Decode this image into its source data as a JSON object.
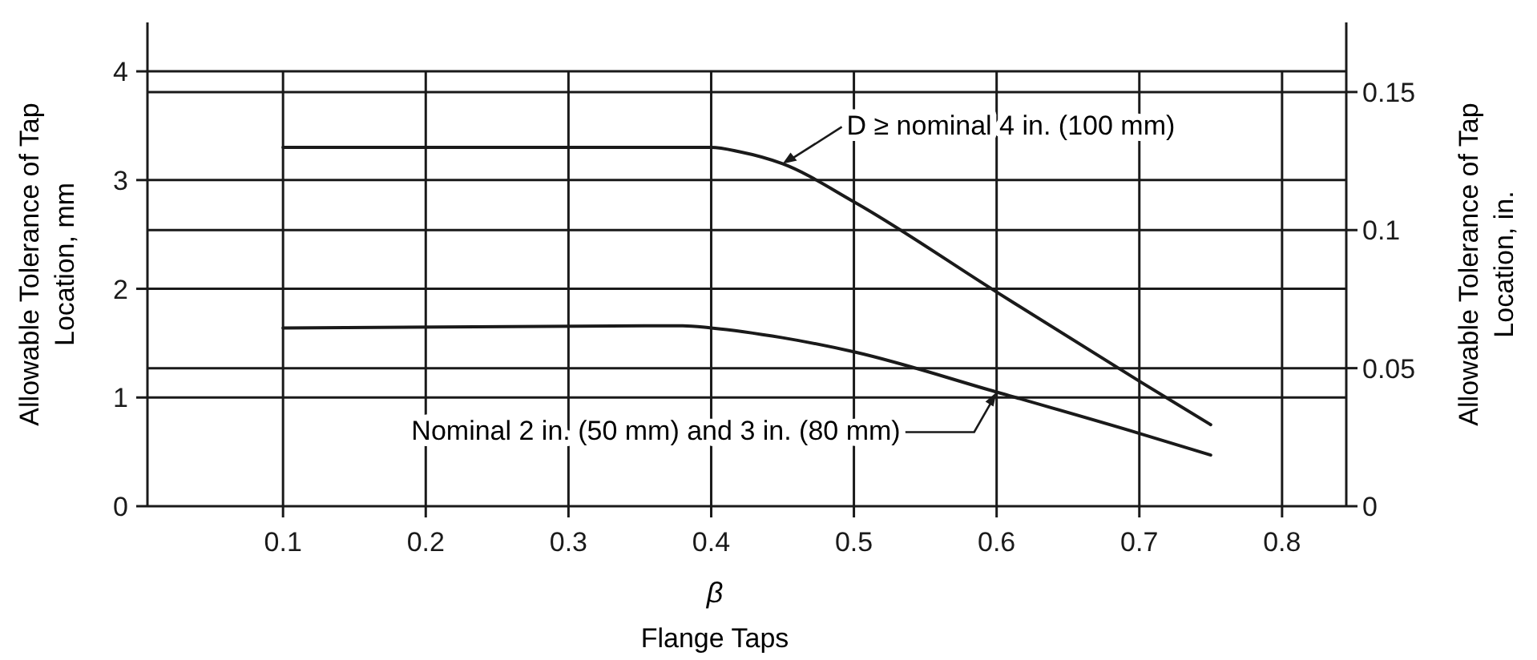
{
  "chart_data": {
    "type": "line",
    "xlabel": "β",
    "ylabel": "Allowable Tolerance of Tap Location, mm",
    "y2label": "Allowable Tolerance of Tap Location, in.",
    "xlim": [
      0.005,
      0.845
    ],
    "xticks": [
      0.1,
      0.2,
      0.3,
      0.4,
      0.5,
      0.6,
      0.7,
      0.8
    ],
    "ylim": [
      0,
      4.45
    ],
    "yticks": [
      0,
      1,
      2,
      3,
      4
    ],
    "y2lim": [
      0,
      0.1752
    ],
    "y2ticks": [
      0,
      0.05,
      0.1,
      0.15
    ],
    "grid": true,
    "line_style": "solid",
    "marker": "none",
    "series": [
      {
        "color": "#1a1a1a",
        "x": [
          0.1,
          0.4,
          0.42,
          0.45,
          0.5,
          0.6,
          0.7,
          0.75
        ],
        "values": [
          3.3,
          3.3,
          3.26,
          3.15,
          2.8,
          1.97,
          1.15,
          0.75
        ]
      },
      {
        "color": "#1a1a1a",
        "x": [
          0.1,
          0.38,
          0.4,
          0.45,
          0.5,
          0.6,
          0.7,
          0.75
        ],
        "values": [
          1.64,
          1.66,
          1.64,
          1.55,
          1.42,
          1.05,
          0.67,
          0.47
        ]
      }
    ],
    "annotations": [
      {
        "text": "D ≥ nominal 4 in. (100 mm)",
        "x": 0.45,
        "y": 3.15
      },
      {
        "text": "Nominal 2 in. (50 mm) and 3 in. (80 mm)",
        "x": 0.6,
        "y": 1.05
      },
      "Flange Taps"
    ]
  }
}
